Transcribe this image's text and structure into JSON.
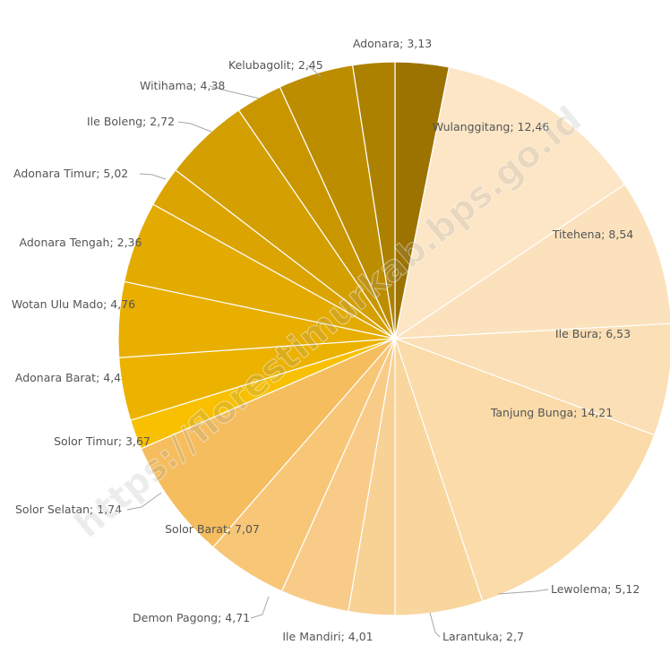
{
  "chart_data": {
    "type": "pie",
    "title": "",
    "watermark": "https://florestimurkab.bps.go.id",
    "slices": [
      {
        "name": "Adonara",
        "value": 3.13,
        "label": "Adonara; 3,13",
        "color": "#9c7300"
      },
      {
        "name": "Wulanggitang",
        "value": 12.46,
        "label": "Wulanggitang; 12,46",
        "color": "#fce6c6"
      },
      {
        "name": "Titehena",
        "value": 8.54,
        "label": "Titehena; 8,54",
        "color": "#fbe2bd"
      },
      {
        "name": "Ile Bura",
        "value": 6.53,
        "label": "Ile Bura; 6,53",
        "color": "#fbdfb6"
      },
      {
        "name": "Tanjung Bunga",
        "value": 14.21,
        "label": "Tanjung Bunga; 14,21",
        "color": "#fadba9"
      },
      {
        "name": "Lewolema",
        "value": 5.12,
        "label": "Lewolema; 5,12",
        "color": "#f9d69e"
      },
      {
        "name": "Larantuka",
        "value": 2.7,
        "label": "Larantuka; 2,7",
        "color": "#f8d194"
      },
      {
        "name": "Ile Mandiri",
        "value": 4.01,
        "label": "Ile Mandiri; 4,01",
        "color": "#f8cc88"
      },
      {
        "name": "Demon Pagong",
        "value": 4.71,
        "label": "Demon Pagong; 4,71",
        "color": "#f7c677"
      },
      {
        "name": "Solor Barat",
        "value": 7.07,
        "label": "Solor Barat; 7,07",
        "color": "#f5bd5e"
      },
      {
        "name": "Solor Selatan",
        "value": 1.74,
        "label": "Solor Selatan; 1,74",
        "color": "#f8c000"
      },
      {
        "name": "Solor Timur",
        "value": 3.67,
        "label": "Solor Timur; 3,67",
        "color": "#ecb200"
      },
      {
        "name": "Adonara Barat",
        "value": 4.4,
        "label": "Adonara Barat; 4,4",
        "color": "#e8ae00"
      },
      {
        "name": "Wotan Ulu Mado",
        "value": 4.76,
        "label": "Wotan Ulu Mado; 4,76",
        "color": "#e3aa00"
      },
      {
        "name": "Adonara Tengah",
        "value": 2.36,
        "label": "Adonara Tengah; 2,36",
        "color": "#dba400"
      },
      {
        "name": "Adonara Timur",
        "value": 5.02,
        "label": "Adonara Timur; 5,02",
        "color": "#d49f00"
      },
      {
        "name": "Ile Boleng",
        "value": 2.72,
        "label": "Ile Boleng; 2,72",
        "color": "#c99600"
      },
      {
        "name": "Witihama",
        "value": 4.38,
        "label": "Witihama; 4,38",
        "color": "#bd8d00"
      },
      {
        "name": "Kelubagolit",
        "value": 2.45,
        "label": "Kelubagolit; 2,45",
        "color": "#ad8100"
      }
    ]
  }
}
